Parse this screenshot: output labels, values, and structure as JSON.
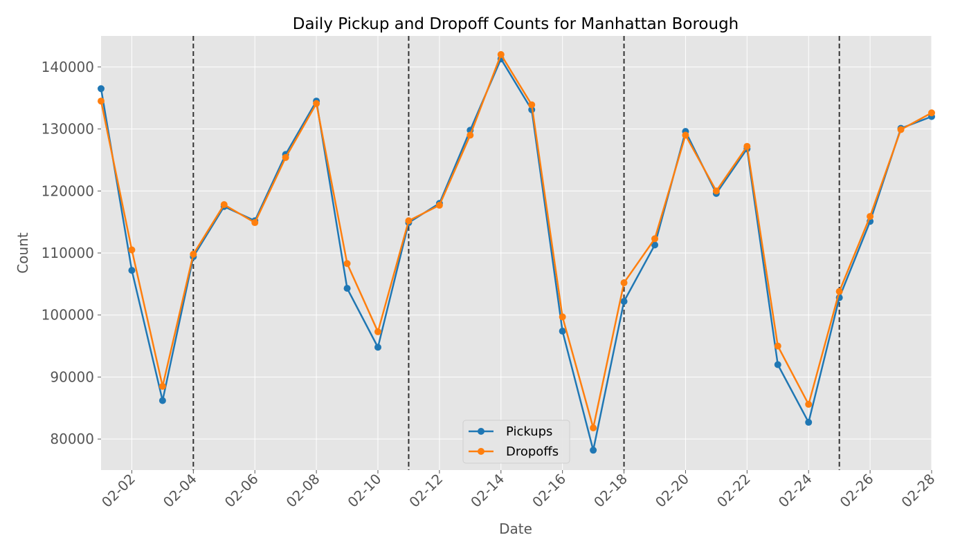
{
  "chart_data": {
    "type": "line",
    "title": "Daily Pickup and Dropoff Counts for Manhattan Borough",
    "xlabel": "Date",
    "ylabel": "Count",
    "x": [
      "02-01",
      "02-02",
      "02-03",
      "02-04",
      "02-05",
      "02-06",
      "02-07",
      "02-08",
      "02-09",
      "02-10",
      "02-11",
      "02-12",
      "02-13",
      "02-14",
      "02-15",
      "02-16",
      "02-17",
      "02-18",
      "02-19",
      "02-20",
      "02-21",
      "02-22",
      "02-23",
      "02-24",
      "02-25",
      "02-26",
      "02-27",
      "02-28"
    ],
    "x_tick_labels": [
      "02-02",
      "02-04",
      "02-06",
      "02-08",
      "02-10",
      "02-12",
      "02-14",
      "02-16",
      "02-18",
      "02-20",
      "02-22",
      "02-24",
      "02-26",
      "02-28"
    ],
    "y_ticks": [
      80000,
      90000,
      100000,
      110000,
      120000,
      130000,
      140000
    ],
    "ylim": [
      75000,
      145000
    ],
    "vertical_lines": [
      "02-04",
      "02-11",
      "02-18",
      "02-25"
    ],
    "grid": true,
    "legend_position": "lower center",
    "series": [
      {
        "name": "Pickups",
        "color": "#1f77b4",
        "values": [
          136500,
          107200,
          86200,
          109400,
          117500,
          115200,
          125900,
          134500,
          104300,
          94800,
          114900,
          118000,
          129800,
          141300,
          133100,
          97400,
          78200,
          102200,
          111300,
          129600,
          119600,
          126800,
          92000,
          82700,
          102800,
          115100,
          130100,
          132000
        ]
      },
      {
        "name": "Dropoffs",
        "color": "#ff7f0e",
        "values": [
          134500,
          110500,
          88500,
          109800,
          117800,
          114900,
          125400,
          134100,
          108300,
          97300,
          115200,
          117700,
          129000,
          142000,
          133900,
          99700,
          81800,
          105200,
          112300,
          129000,
          120000,
          127200,
          95000,
          85600,
          103800,
          115900,
          129900,
          132600
        ]
      }
    ]
  }
}
